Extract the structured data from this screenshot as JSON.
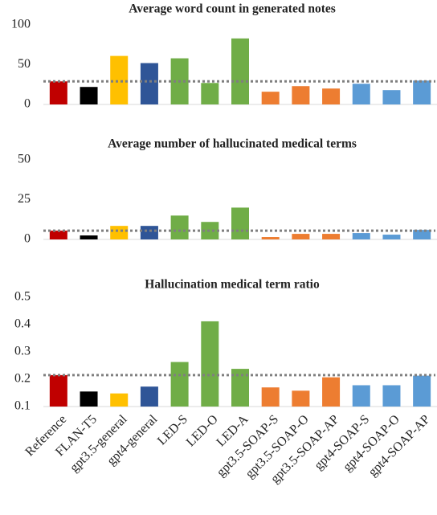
{
  "chart_data": [
    {
      "type": "bar",
      "title": "Average word count in generated notes",
      "values": [
        29,
        22,
        61,
        52,
        58,
        27,
        83,
        16,
        23,
        20,
        26,
        18,
        30
      ],
      "colors": [
        "#c00000",
        "#000000",
        "#ffc000",
        "#2f5597",
        "#70ad47",
        "#70ad47",
        "#70ad47",
        "#ed7d31",
        "#ed7d31",
        "#ed7d31",
        "#5b9bd5",
        "#5b9bd5",
        "#5b9bd5"
      ],
      "reference_line": 29,
      "ylim": [
        0,
        100
      ],
      "yticks": [
        0,
        50,
        100
      ]
    },
    {
      "type": "bar",
      "title": "Average number of hallucinated medical terms",
      "values": [
        5.5,
        2.5,
        8.5,
        8.5,
        15,
        11,
        20,
        1.5,
        3.5,
        3.5,
        4,
        3,
        6
      ],
      "colors": [
        "#c00000",
        "#000000",
        "#ffc000",
        "#2f5597",
        "#70ad47",
        "#70ad47",
        "#70ad47",
        "#ed7d31",
        "#ed7d31",
        "#ed7d31",
        "#5b9bd5",
        "#5b9bd5",
        "#5b9bd5"
      ],
      "reference_line": 5.5,
      "ylim": [
        0,
        50
      ],
      "yticks": [
        0,
        25,
        50
      ]
    },
    {
      "type": "bar",
      "title": "Hallucination medical term ratio",
      "categories": [
        "Reference",
        "FLAN-T5",
        "gpt3.5-general",
        "gpt4-general",
        "LED-S",
        "LED-O",
        "LED-A",
        "gpt3.5-SOAP-S",
        "gpt3.5-SOAP-O",
        "gpt3.5-SOAP-AP",
        "gpt4-SOAP-S",
        "gpt4-SOAP-O",
        "gpt4-SOAP-AP"
      ],
      "values": [
        0.215,
        0.155,
        0.148,
        0.173,
        0.263,
        0.412,
        0.238,
        0.17,
        0.158,
        0.207,
        0.178,
        0.178,
        0.213
      ],
      "colors": [
        "#c00000",
        "#000000",
        "#ffc000",
        "#2f5597",
        "#70ad47",
        "#70ad47",
        "#70ad47",
        "#ed7d31",
        "#ed7d31",
        "#ed7d31",
        "#5b9bd5",
        "#5b9bd5",
        "#5b9bd5"
      ],
      "reference_line": 0.215,
      "ylim": [
        0.1,
        0.5
      ],
      "yticks": [
        0.1,
        0.2,
        0.3,
        0.4,
        0.5
      ]
    }
  ]
}
